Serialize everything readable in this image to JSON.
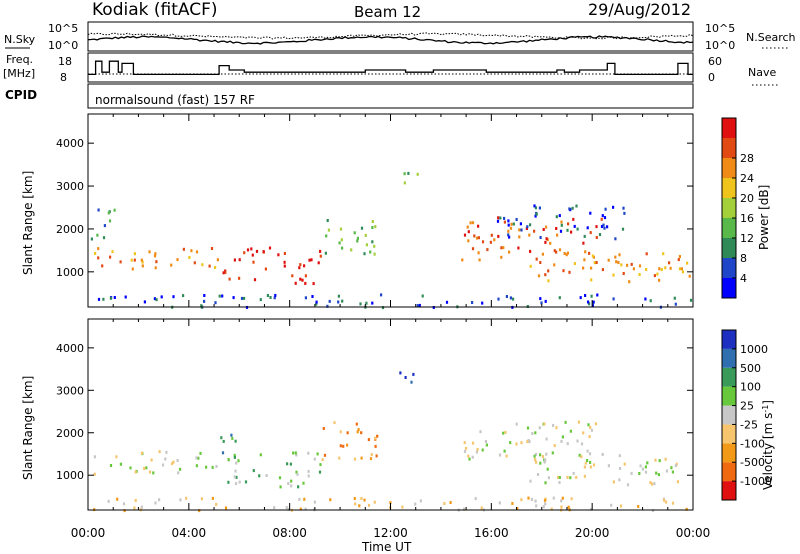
{
  "header": {
    "station": "Kodiak (fitACF)",
    "beam": "Beam 12",
    "date": "29/Aug/2012",
    "cpid_label": "CPID",
    "cpid_value": "normalsound (fast) 157 RF"
  },
  "chart_data": [
    {
      "type": "line",
      "panel": "noise",
      "left_label": "N.Sky",
      "right_label": "N.Search",
      "left_ticks": [
        "10^5",
        "10^0"
      ],
      "right_ticks": [
        "10^5",
        "10^0"
      ],
      "series": [
        {
          "name": "N.Sky",
          "style": "solid"
        },
        {
          "name": "N.Search",
          "style": "dotted"
        }
      ]
    },
    {
      "type": "line",
      "panel": "frequency",
      "left_label_line1": "Freq.",
      "left_label_line2": "[MHz]",
      "right_label": "Nave",
      "left_ticks": [
        "18",
        "8"
      ],
      "right_ticks": [
        "60",
        "0"
      ],
      "ylim": [
        8,
        18
      ],
      "series": [
        {
          "name": "Freq.",
          "style": "solid",
          "x": [
            0,
            0.3,
            0.3,
            0.55,
            0.55,
            0.85,
            0.85,
            1.2,
            1.2,
            1.35,
            1.35,
            1.8,
            1.8,
            5.2,
            5.2,
            5.6,
            5.6,
            6.2,
            6.2,
            11.0,
            11.0,
            12.6,
            12.6,
            13.7,
            13.7,
            15.8,
            15.8,
            16.3,
            16.3,
            18.6,
            18.6,
            18.9,
            18.9,
            19.5,
            19.5,
            20.6,
            20.6,
            20.9,
            20.9,
            21.2,
            21.2,
            23.4,
            23.4,
            23.8,
            23.8,
            24
          ],
          "y": [
            11,
            11,
            17,
            17,
            12,
            12,
            17,
            17,
            12,
            12,
            16,
            16,
            11,
            11,
            15,
            15,
            13,
            13,
            12,
            12,
            13,
            13,
            12,
            12,
            13,
            13,
            12,
            12,
            12,
            12,
            13,
            13,
            12,
            12,
            13,
            13,
            16,
            16,
            11,
            11,
            11,
            11,
            16,
            16,
            11,
            11
          ]
        },
        {
          "name": "Nave",
          "style": "dotted",
          "value": 19
        }
      ]
    },
    {
      "type": "heatmap",
      "panel": "power",
      "xlabel": "",
      "ylabel": "Slant Range [km]",
      "yticks": [
        "1000",
        "2000",
        "3000",
        "4000"
      ],
      "ylim": [
        180,
        4680
      ],
      "xlim": [
        0,
        24
      ],
      "colorbar_label": "Power [dB]",
      "colorbar_ticks": [
        "4",
        "8",
        "12",
        "16",
        "20",
        "24",
        "28"
      ],
      "colors": [
        "#0000ff",
        "#1f46c8",
        "#2f8a58",
        "#58b84a",
        "#a2cf3a",
        "#efc41c",
        "#ef8b16",
        "#e24a14",
        "#e01010"
      ],
      "regions": [
        {
          "t0": 0.2,
          "t1": 5.3,
          "r0": 1050,
          "r1": 1600,
          "level": 6
        },
        {
          "t0": 5.3,
          "t1": 9.2,
          "r0": 750,
          "r1": 1600,
          "level": 8
        },
        {
          "t0": 9.2,
          "t1": 11.5,
          "r0": 1400,
          "r1": 2300,
          "level": 3
        },
        {
          "t0": 12.3,
          "t1": 13.3,
          "r0": 3100,
          "r1": 3450,
          "level": 3
        },
        {
          "t0": 0.1,
          "t1": 1.1,
          "r0": 1800,
          "r1": 2600,
          "level": 2
        },
        {
          "t0": 14.8,
          "t1": 20.5,
          "r0": 1300,
          "r1": 2300,
          "level": 7
        },
        {
          "t0": 17.5,
          "t1": 24,
          "r0": 800,
          "r1": 1500,
          "level": 6
        },
        {
          "t0": 16.2,
          "t1": 21.5,
          "r0": 1800,
          "r1": 2600,
          "level": 1
        },
        {
          "t0": 0,
          "t1": 24,
          "r0": 200,
          "r1": 500,
          "level": 1
        }
      ]
    },
    {
      "type": "heatmap",
      "panel": "velocity",
      "xlabel": "Time UT",
      "ylabel": "Slant Range [km]",
      "yticks": [
        "1000",
        "2000",
        "3000",
        "4000"
      ],
      "ylim": [
        180,
        4680
      ],
      "xlim": [
        0,
        24
      ],
      "xticks": [
        "00:00",
        "04:00",
        "08:00",
        "12:00",
        "16:00",
        "20:00",
        "00:00"
      ],
      "colorbar_label": "Velocity [m s",
      "colorbar_exponent": "-1",
      "colorbar_label_end": "]",
      "colorbar_ticks": [
        "-1000",
        "-500",
        "-100",
        "-25",
        "25",
        "100",
        "500",
        "1000"
      ],
      "colors": [
        "#e01010",
        "#ef6a10",
        "#f29a18",
        "#f6c56e",
        "#c7c7c7",
        "#68c83c",
        "#3a9a5a",
        "#2f6fb0",
        "#1c2fc0"
      ],
      "regions": [
        {
          "t0": 0.2,
          "t1": 5.3,
          "r0": 1050,
          "r1": 1600,
          "level": 4
        },
        {
          "t0": 5.3,
          "t1": 9.2,
          "r0": 750,
          "r1": 1600,
          "level": 5
        },
        {
          "t0": 5.2,
          "t1": 6.2,
          "r0": 1400,
          "r1": 2000,
          "level": 6
        },
        {
          "t0": 9.0,
          "t1": 11.5,
          "r0": 1400,
          "r1": 2300,
          "level": 2
        },
        {
          "t0": 12.3,
          "t1": 13.3,
          "r0": 3100,
          "r1": 3450,
          "level": 8
        },
        {
          "t0": 14.8,
          "t1": 20.5,
          "r0": 1300,
          "r1": 2300,
          "level": 4
        },
        {
          "t0": 17.5,
          "t1": 24,
          "r0": 800,
          "r1": 1500,
          "level": 4
        },
        {
          "t0": 0,
          "t1": 24,
          "r0": 200,
          "r1": 500,
          "level": 3
        }
      ]
    }
  ]
}
